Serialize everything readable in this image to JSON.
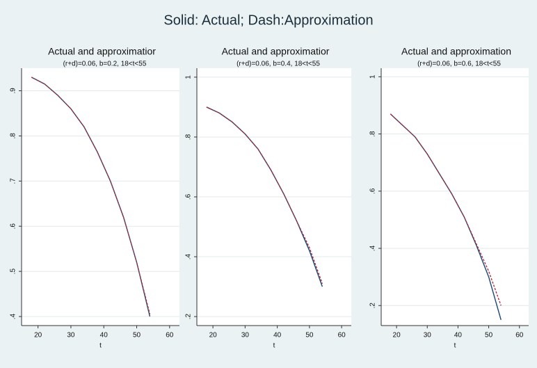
{
  "title": "Solid: Actual; Dash:Approximation",
  "chart_data": [
    {
      "type": "line",
      "title": "Actual and approximatior",
      "subtitle": "(r+d)=0.06, b=0.2, 18<t<55",
      "xlabel": "t",
      "x": [
        18,
        22,
        26,
        30,
        34,
        38,
        42,
        46,
        50,
        54
      ],
      "series": [
        {
          "color": "#1a476f",
          "style": "solid",
          "values": [
            0.93,
            0.915,
            0.89,
            0.86,
            0.82,
            0.765,
            0.7,
            0.62,
            0.52,
            0.4
          ]
        },
        {
          "color": "#b03040",
          "style": "dash",
          "values": [
            0.93,
            0.915,
            0.89,
            0.86,
            0.82,
            0.765,
            0.7,
            0.62,
            0.52,
            0.405
          ]
        }
      ],
      "xlim": [
        15,
        63
      ],
      "xticks": [
        20,
        30,
        40,
        50,
        60
      ],
      "ylim": [
        0.38,
        0.95
      ],
      "yticks": [
        {
          "value": 0.4,
          "label": ".4"
        },
        {
          "value": 0.5,
          "label": ".5"
        },
        {
          "value": 0.6,
          "label": ".6"
        },
        {
          "value": 0.7,
          "label": ".7"
        },
        {
          "value": 0.8,
          "label": ".8"
        },
        {
          "value": 0.9,
          "label": ".9"
        }
      ],
      "grid": true
    },
    {
      "type": "line",
      "title": "Actual and approximatior",
      "subtitle": "(r+d)=0.06, b=0.4, 18<t<55",
      "xlabel": "t",
      "x": [
        18,
        22,
        26,
        30,
        34,
        38,
        42,
        46,
        50,
        54
      ],
      "series": [
        {
          "color": "#1a476f",
          "style": "solid",
          "values": [
            0.9,
            0.88,
            0.85,
            0.81,
            0.76,
            0.69,
            0.61,
            0.52,
            0.42,
            0.3
          ]
        },
        {
          "color": "#b03040",
          "style": "dash",
          "values": [
            0.9,
            0.88,
            0.85,
            0.81,
            0.76,
            0.69,
            0.61,
            0.52,
            0.43,
            0.31
          ]
        }
      ],
      "xlim": [
        15,
        63
      ],
      "xticks": [
        20,
        30,
        40,
        50,
        60
      ],
      "ylim": [
        0.17,
        1.03
      ],
      "yticks": [
        {
          "value": 0.2,
          "label": ".2"
        },
        {
          "value": 0.4,
          "label": ".4"
        },
        {
          "value": 0.6,
          "label": ".6"
        },
        {
          "value": 0.8,
          "label": ".8"
        },
        1
      ],
      "grid": true
    },
    {
      "type": "line",
      "title": "Actual and approximation",
      "subtitle": "(r+d)=0.06, b=0.6, 18<t<55",
      "xlabel": "t",
      "x": [
        18,
        22,
        26,
        30,
        34,
        38,
        42,
        46,
        50,
        54
      ],
      "series": [
        {
          "color": "#1a476f",
          "style": "solid",
          "values": [
            0.87,
            0.83,
            0.79,
            0.73,
            0.66,
            0.59,
            0.51,
            0.41,
            0.3,
            0.15
          ]
        },
        {
          "color": "#b03040",
          "style": "dash",
          "values": [
            0.87,
            0.83,
            0.79,
            0.73,
            0.66,
            0.59,
            0.51,
            0.415,
            0.32,
            0.2
          ]
        }
      ],
      "xlim": [
        15,
        63
      ],
      "xticks": [
        20,
        30,
        40,
        50,
        60
      ],
      "ylim": [
        0.13,
        1.03
      ],
      "yticks": [
        {
          "value": 0.2,
          "label": ".2"
        },
        {
          "value": 0.4,
          "label": ".4"
        },
        {
          "value": 0.6,
          "label": ".6"
        },
        {
          "value": 0.8,
          "label": ".8"
        },
        1
      ],
      "grid": true
    }
  ]
}
